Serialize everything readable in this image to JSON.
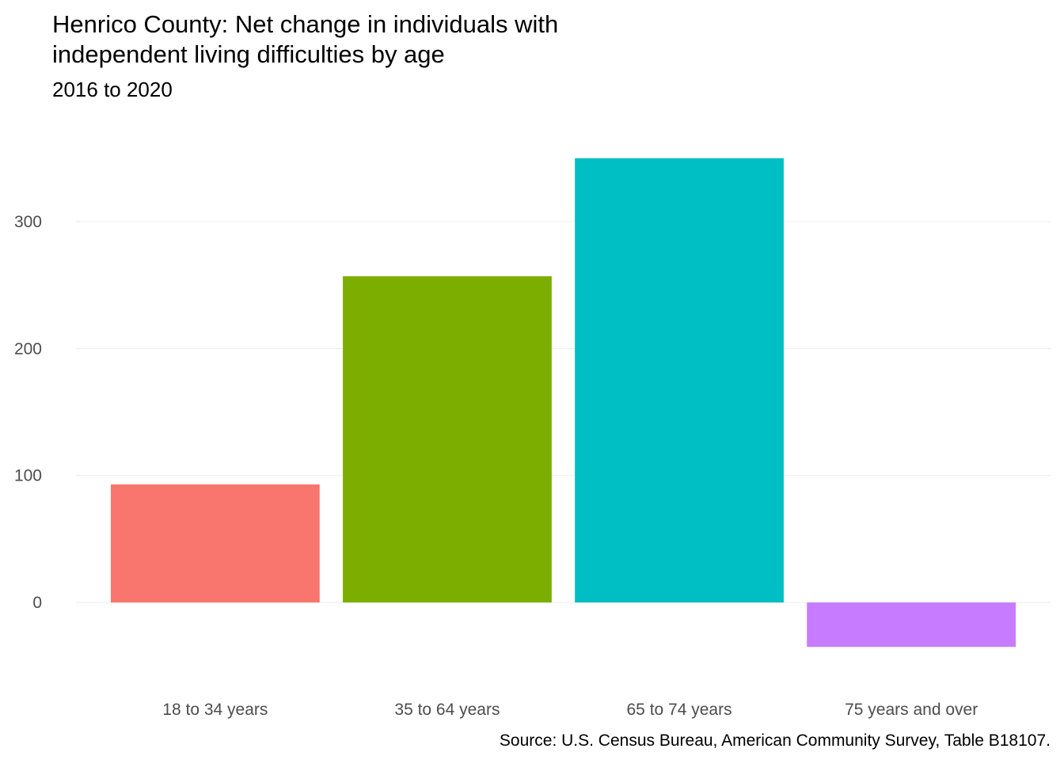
{
  "chart_data": {
    "type": "bar",
    "title": "Henrico County: Net change in individuals with independent living difficulties by age",
    "title_lines": [
      "Henrico County: Net change in individuals with",
      "independent living difficulties by age"
    ],
    "subtitle": "2016 to 2020",
    "caption": "Source: U.S. Census Bureau, American Community Survey, Table B18107.",
    "xlabel": "",
    "ylabel": "",
    "categories": [
      "18 to 34 years",
      "35 to 64 years",
      "65 to 74 years",
      "75 years and over"
    ],
    "values": [
      93,
      257,
      350,
      -35
    ],
    "colors": [
      "#F8766D",
      "#7CAE00",
      "#00BFC4",
      "#C77CFF"
    ],
    "yticks": [
      0,
      100,
      200,
      300
    ],
    "ylim": [
      -53,
      368
    ],
    "grid": true,
    "legend": "none"
  }
}
